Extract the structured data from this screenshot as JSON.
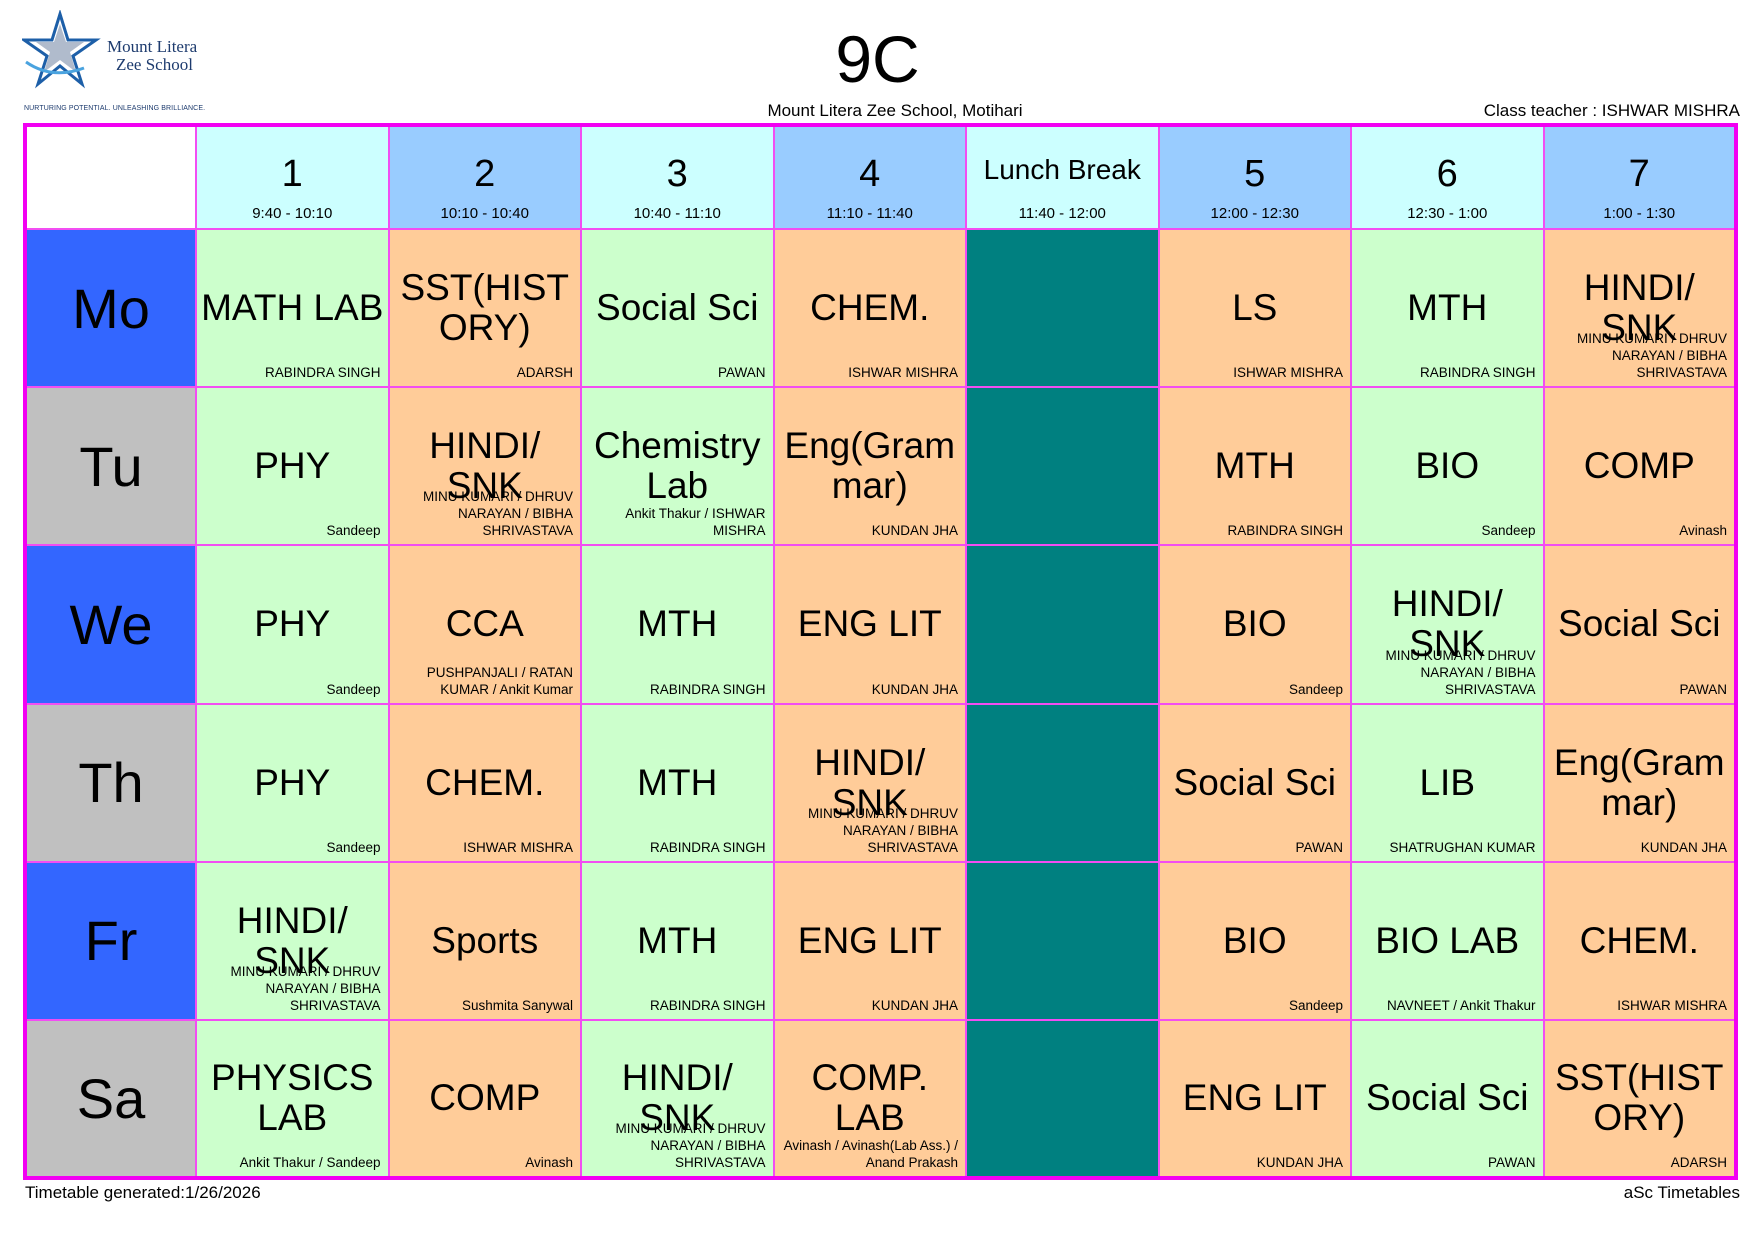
{
  "logo": {
    "name_line1": "Mount Litera",
    "name_line2": "Zee School",
    "tagline": "NURTURING POTENTIAL. UNLEASHING BRILLIANCE."
  },
  "title": "9C",
  "school": "Mount Litera Zee School, Motihari",
  "class_teacher": "Class teacher : ISHWAR MISHRA",
  "footer": {
    "generated": "Timetable generated:1/26/2026",
    "brand": "aSc Timetables"
  },
  "colors": {
    "border": "#f200f2",
    "header_light": "#ccffff",
    "header_dark": "#99ccff",
    "day_blue": "#3366ff",
    "day_grey": "#c0c0c0",
    "cell_green": "#ccffcc",
    "cell_orange": "#ffcc99",
    "lunch": "#008080"
  },
  "periods": [
    {
      "label": "1",
      "time": "9:40 - 10:10"
    },
    {
      "label": "2",
      "time": "10:10 - 10:40"
    },
    {
      "label": "3",
      "time": "10:40 - 11:10"
    },
    {
      "label": "4",
      "time": "11:10 - 11:40"
    },
    {
      "label": "Lunch Break",
      "time": "11:40 - 12:00"
    },
    {
      "label": "5",
      "time": "12:00 - 12:30"
    },
    {
      "label": "6",
      "time": "12:30 - 1:00"
    },
    {
      "label": "7",
      "time": "1:00 - 1:30"
    }
  ],
  "days": [
    {
      "day": "Mo",
      "cells": [
        {
          "subject": "MATH LAB",
          "teacher": "RABINDRA SINGH"
        },
        {
          "subject": "SST(HIST ORY)",
          "teacher": "ADARSH"
        },
        {
          "subject": "Social Sci",
          "teacher": "PAWAN"
        },
        {
          "subject": "CHEM.",
          "teacher": "ISHWAR MISHRA"
        },
        {
          "subject": "LS",
          "teacher": "ISHWAR MISHRA"
        },
        {
          "subject": "MTH",
          "teacher": "RABINDRA SINGH"
        },
        {
          "subject": "HINDI/ SNK",
          "teacher": "MINU KUMARI / DHRUV NARAYAN / BIBHA SHRIVASTAVA"
        }
      ]
    },
    {
      "day": "Tu",
      "cells": [
        {
          "subject": "PHY",
          "teacher": "Sandeep"
        },
        {
          "subject": "HINDI/ SNK",
          "teacher": "MINU KUMARI / DHRUV NARAYAN / BIBHA SHRIVASTAVA"
        },
        {
          "subject": "Chemistry Lab",
          "teacher": "Ankit Thakur / ISHWAR MISHRA"
        },
        {
          "subject": "Eng(Gram mar)",
          "teacher": "KUNDAN JHA"
        },
        {
          "subject": "MTH",
          "teacher": "RABINDRA SINGH"
        },
        {
          "subject": "BIO",
          "teacher": "Sandeep"
        },
        {
          "subject": "COMP",
          "teacher": "Avinash"
        }
      ]
    },
    {
      "day": "We",
      "cells": [
        {
          "subject": "PHY",
          "teacher": "Sandeep"
        },
        {
          "subject": "CCA",
          "teacher": "PUSHPANJALI / RATAN KUMAR / Ankit Kumar"
        },
        {
          "subject": "MTH",
          "teacher": "RABINDRA SINGH"
        },
        {
          "subject": "ENG LIT",
          "teacher": "KUNDAN JHA"
        },
        {
          "subject": "BIO",
          "teacher": "Sandeep"
        },
        {
          "subject": "HINDI/ SNK",
          "teacher": "MINU KUMARI / DHRUV NARAYAN / BIBHA SHRIVASTAVA"
        },
        {
          "subject": "Social Sci",
          "teacher": "PAWAN"
        }
      ]
    },
    {
      "day": "Th",
      "cells": [
        {
          "subject": "PHY",
          "teacher": "Sandeep"
        },
        {
          "subject": "CHEM.",
          "teacher": "ISHWAR MISHRA"
        },
        {
          "subject": "MTH",
          "teacher": "RABINDRA SINGH"
        },
        {
          "subject": "HINDI/ SNK",
          "teacher": "MINU KUMARI / DHRUV NARAYAN / BIBHA SHRIVASTAVA"
        },
        {
          "subject": "Social Sci",
          "teacher": "PAWAN"
        },
        {
          "subject": "LIB",
          "teacher": "SHATRUGHAN KUMAR"
        },
        {
          "subject": "Eng(Gram mar)",
          "teacher": "KUNDAN JHA"
        }
      ]
    },
    {
      "day": "Fr",
      "cells": [
        {
          "subject": "HINDI/ SNK",
          "teacher": "MINU KUMARI / DHRUV NARAYAN / BIBHA SHRIVASTAVA"
        },
        {
          "subject": "Sports",
          "teacher": "Sushmita Sanywal"
        },
        {
          "subject": "MTH",
          "teacher": "RABINDRA SINGH"
        },
        {
          "subject": "ENG LIT",
          "teacher": "KUNDAN JHA"
        },
        {
          "subject": "BIO",
          "teacher": "Sandeep"
        },
        {
          "subject": "BIO LAB",
          "teacher": "NAVNEET / Ankit Thakur"
        },
        {
          "subject": "CHEM.",
          "teacher": "ISHWAR MISHRA"
        }
      ]
    },
    {
      "day": "Sa",
      "cells": [
        {
          "subject": "PHYSICS LAB",
          "teacher": "Ankit Thakur / Sandeep"
        },
        {
          "subject": "COMP",
          "teacher": "Avinash"
        },
        {
          "subject": "HINDI/ SNK",
          "teacher": "MINU KUMARI / DHRUV NARAYAN / BIBHA SHRIVASTAVA"
        },
        {
          "subject": "COMP. LAB",
          "teacher": "Avinash / Avinash(Lab Ass.) / Anand Prakash"
        },
        {
          "subject": "ENG LIT",
          "teacher": "KUNDAN JHA"
        },
        {
          "subject": "Social Sci",
          "teacher": "PAWAN"
        },
        {
          "subject": "SST(HIST ORY)",
          "teacher": "ADARSH"
        }
      ]
    }
  ]
}
